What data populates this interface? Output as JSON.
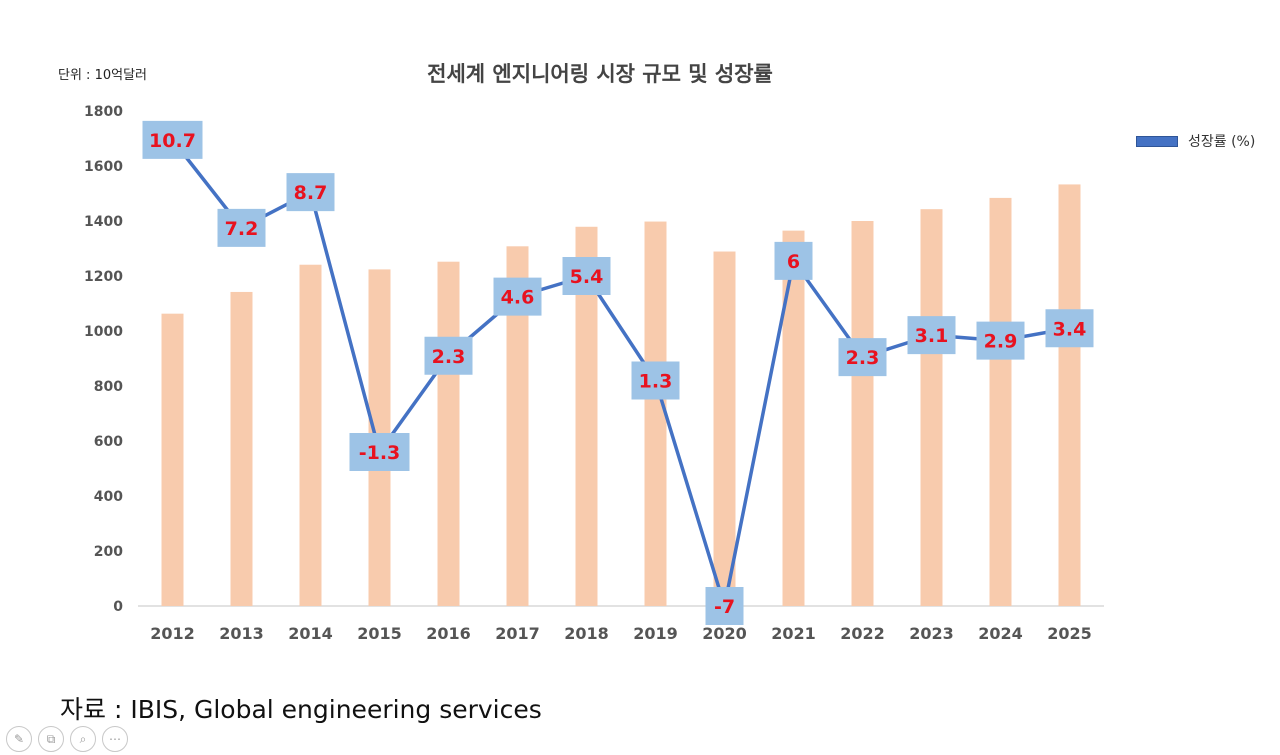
{
  "unit_label": "단위 : 10억달러",
  "source_text": "자료 : IBIS, Global engineering services",
  "colors": {
    "bar": "#f8cbad",
    "line": "#4472c4",
    "label_box": "#9dc3e6",
    "label_text": "#e8121f"
  },
  "toolbar": {
    "icons": [
      "pen-icon",
      "copy-icon",
      "zoom-icon",
      "more-icon"
    ]
  },
  "chart_data": {
    "type": "bar",
    "title": "전세계 엔지니어링 시장 규모 및 성장률",
    "categories": [
      "2012",
      "2013",
      "2014",
      "2015",
      "2016",
      "2017",
      "2018",
      "2019",
      "2020",
      "2021",
      "2022",
      "2023",
      "2024",
      "2025"
    ],
    "ylim": [
      0,
      1800
    ],
    "yticks": [
      0,
      200,
      400,
      600,
      800,
      1000,
      1200,
      1400,
      1600,
      1800
    ],
    "grid": false,
    "legend_position": "top-right",
    "series": [
      {
        "type": "bar",
        "values": [
          1063,
          1142,
          1241,
          1224,
          1252,
          1308,
          1379,
          1398,
          1289,
          1365,
          1400,
          1443,
          1484,
          1533
        ]
      },
      {
        "type": "line",
        "name": "성장률 (%)",
        "values": [
          10.7,
          7.2,
          8.7,
          -1.3,
          2.3,
          4.6,
          5.4,
          1.3,
          -7,
          6,
          2.3,
          3.1,
          2.9,
          3.4
        ],
        "labels": [
          "10.7",
          "7.2",
          "8.7",
          "-1.3",
          "2.3",
          "4.6",
          "5.4",
          "1.3",
          "-7",
          "6",
          "2.3",
          "3.1",
          "2.9",
          "3.4"
        ],
        "plotted_on_left_axis": [
          1695,
          1375,
          1505,
          560,
          910,
          1125,
          1200,
          820,
          0,
          1255,
          905,
          985,
          965,
          1010
        ]
      }
    ]
  }
}
